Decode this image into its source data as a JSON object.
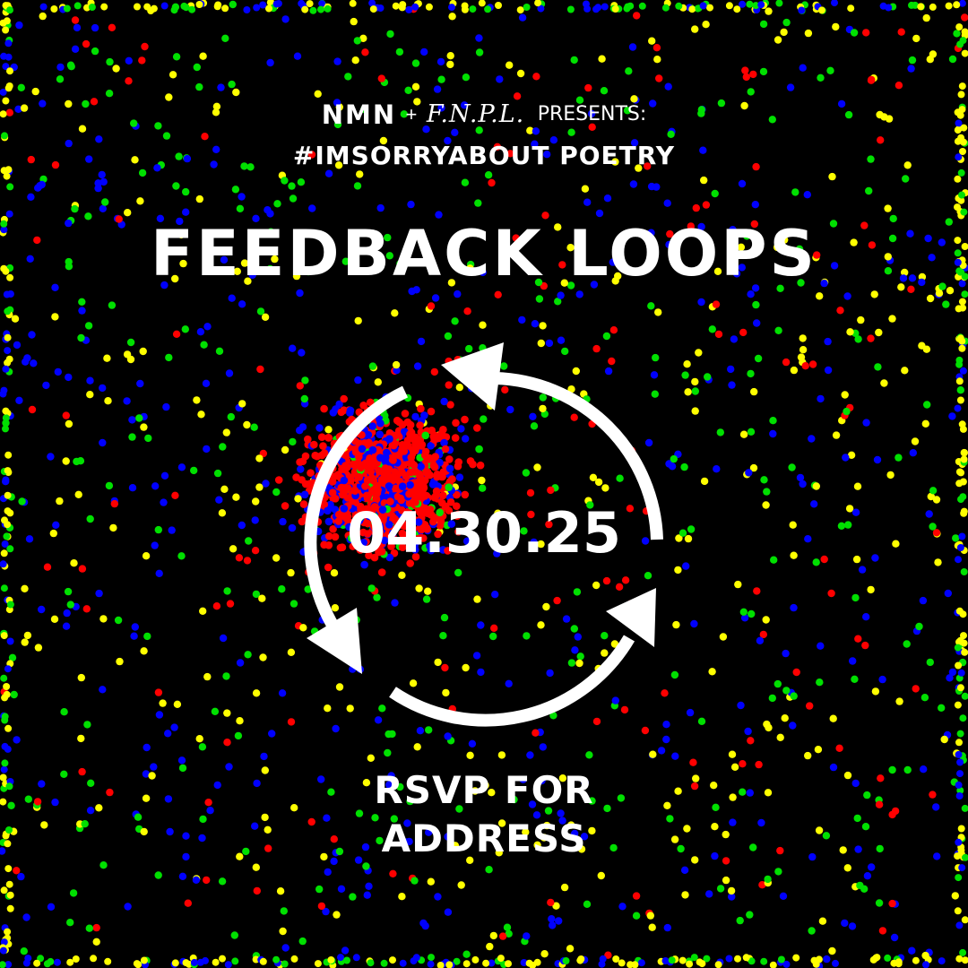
{
  "header": {
    "logo_nmn": "NMN",
    "plus": "+",
    "logo_fnpl": "F.N.P.L.",
    "presents": "PRESENTS:",
    "subtitle": "#IMSORRYABOUT POETRY"
  },
  "event": {
    "title": "FEEDBACK LOOPS",
    "date": "04.30.25",
    "rsvp_line1": "RSVP FOR",
    "rsvp_line2": "ADDRESS"
  },
  "graphic": {
    "icon": "cycle-arrows-icon"
  },
  "colors": {
    "background": "#000000",
    "text": "#ffffff",
    "dot_red": "#ff0000",
    "dot_green": "#00e000",
    "dot_blue": "#0000ff",
    "dot_yellow": "#ffff00"
  }
}
